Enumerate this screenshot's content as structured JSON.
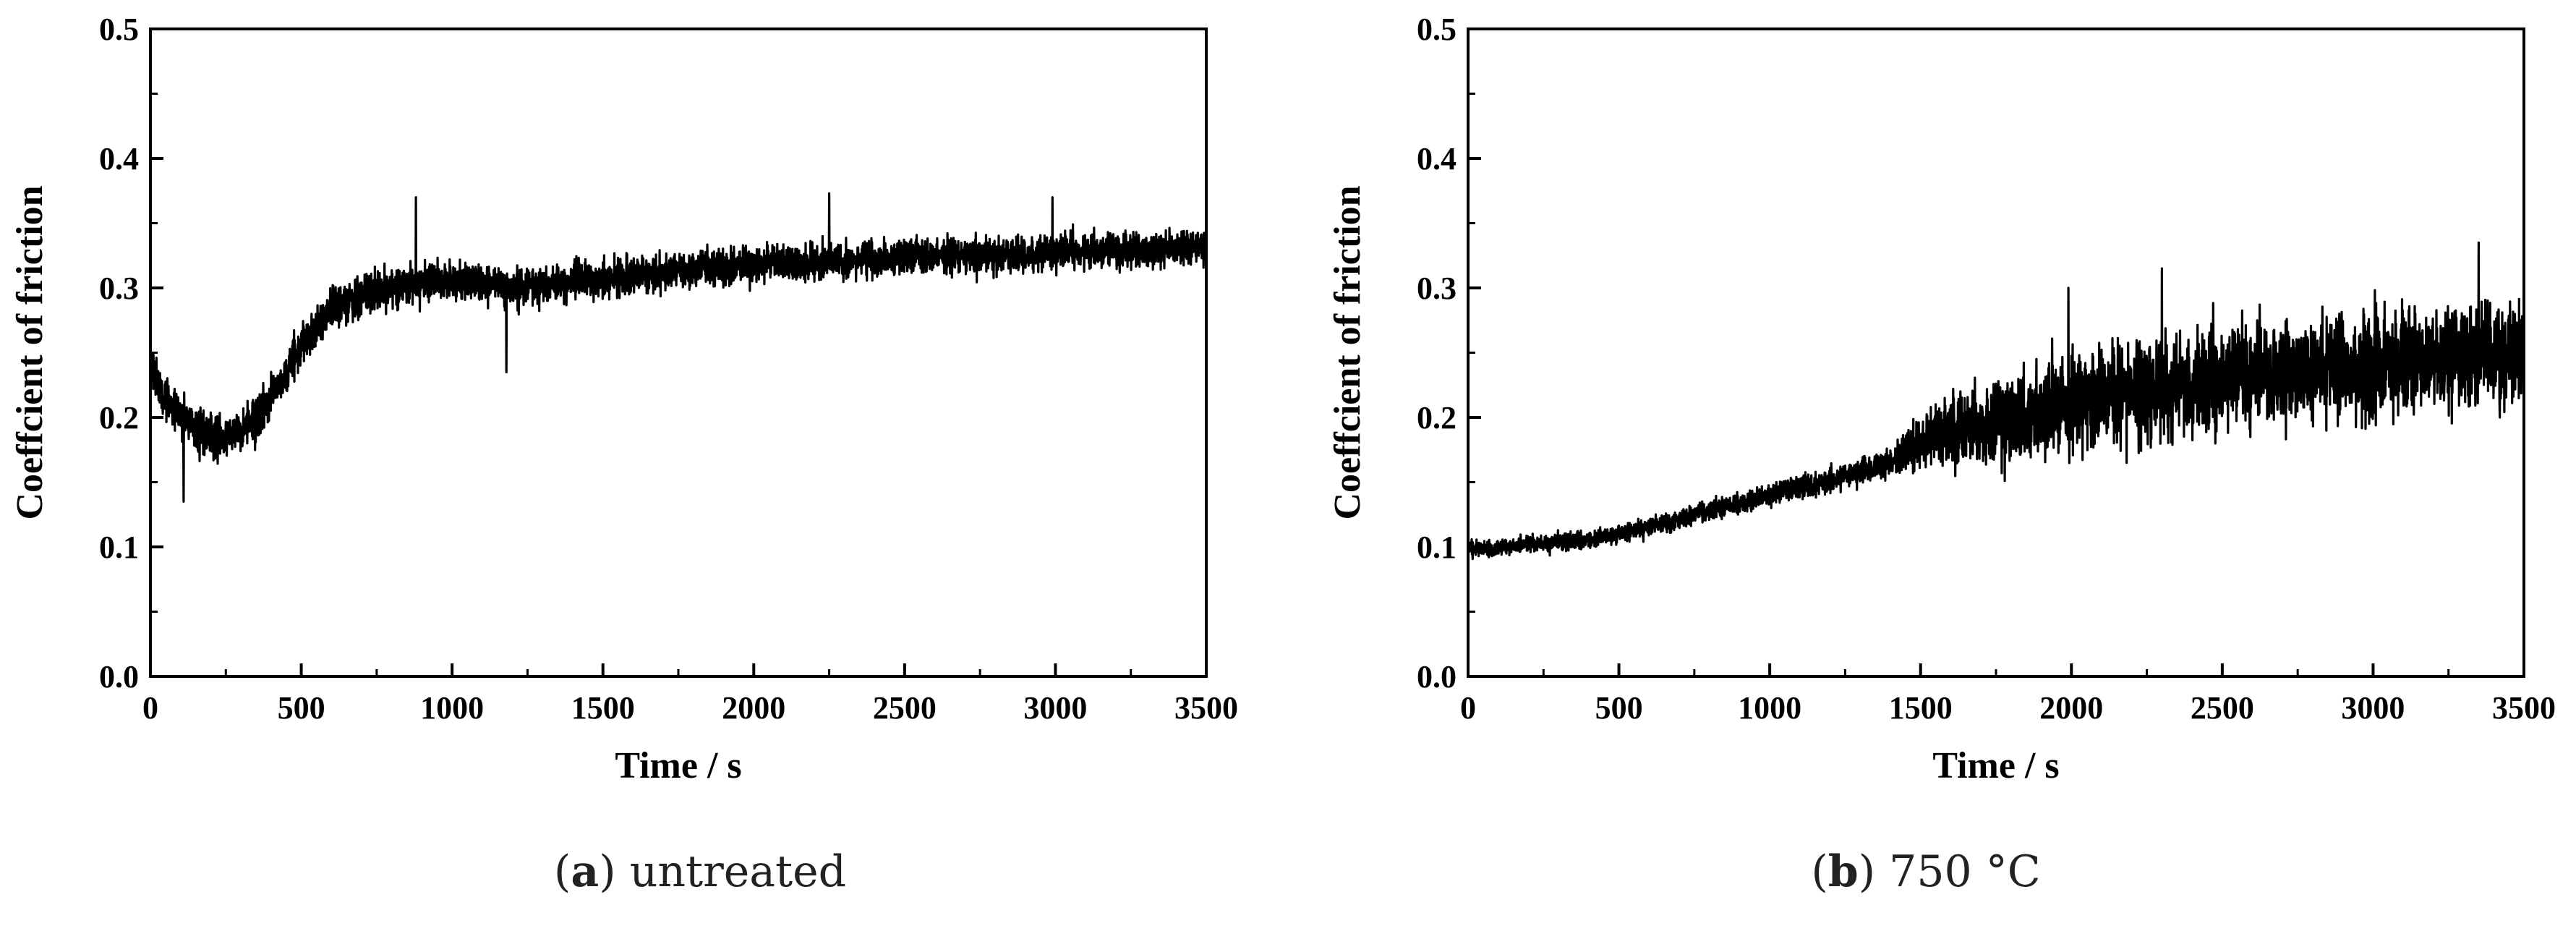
{
  "chart_data": [
    {
      "type": "line",
      "caption_letter": "a",
      "caption_text": "untreated",
      "xlabel": "Time / s",
      "ylabel": "Coeffcient of friction",
      "xlim": [
        0,
        3500
      ],
      "ylim": [
        0.0,
        0.5
      ],
      "xticks": [
        "0",
        "500",
        "1000",
        "1500",
        "2000",
        "2500",
        "3000",
        "3500"
      ],
      "yticks": [
        "0.0",
        "0.1",
        "0.2",
        "0.3",
        "0.4",
        "0.5"
      ],
      "grid": false,
      "legend": "none",
      "series_color": "#000000",
      "trend": {
        "x": [
          0,
          50,
          100,
          150,
          200,
          250,
          300,
          350,
          400,
          450,
          500,
          550,
          600,
          700,
          800,
          900,
          1000,
          1100,
          1200,
          1400,
          1600,
          1800,
          2000,
          2200,
          2400,
          2600,
          2800,
          3000,
          3200,
          3400,
          3500
        ],
        "y": [
          0.235,
          0.215,
          0.2,
          0.19,
          0.185,
          0.185,
          0.19,
          0.2,
          0.215,
          0.235,
          0.255,
          0.27,
          0.285,
          0.295,
          0.3,
          0.305,
          0.305,
          0.305,
          0.3,
          0.305,
          0.31,
          0.315,
          0.318,
          0.32,
          0.322,
          0.325,
          0.325,
          0.328,
          0.33,
          0.33,
          0.33
        ]
      },
      "noise_amplitude": {
        "x": [
          0,
          500,
          1000,
          2000,
          3500
        ],
        "y": [
          0.025,
          0.02,
          0.02,
          0.018,
          0.018
        ]
      },
      "spikes": [
        {
          "x": 110,
          "y": 0.135
        },
        {
          "x": 880,
          "y": 0.37
        },
        {
          "x": 1180,
          "y": 0.235
        },
        {
          "x": 2250,
          "y": 0.373
        },
        {
          "x": 2990,
          "y": 0.37
        }
      ]
    },
    {
      "type": "line",
      "caption_letter": "b",
      "caption_text": "750 °C",
      "xlabel": "Time / s",
      "ylabel": "Coeffcient of friction",
      "xlim": [
        0,
        3500
      ],
      "ylim": [
        0.0,
        0.5
      ],
      "xticks": [
        "0",
        "500",
        "1000",
        "1500",
        "2000",
        "2500",
        "3000",
        "3500"
      ],
      "yticks": [
        "0.0",
        "0.1",
        "0.2",
        "0.3",
        "0.4",
        "0.5"
      ],
      "grid": false,
      "legend": "none",
      "series_color": "#000000",
      "trend": {
        "x": [
          0,
          200,
          400,
          600,
          800,
          1000,
          1200,
          1400,
          1500,
          1600,
          1800,
          2000,
          2200,
          2400,
          2600,
          2800,
          3000,
          3200,
          3400,
          3500
        ],
        "y": [
          0.098,
          0.102,
          0.105,
          0.115,
          0.128,
          0.14,
          0.152,
          0.165,
          0.18,
          0.19,
          0.2,
          0.21,
          0.218,
          0.225,
          0.232,
          0.238,
          0.242,
          0.245,
          0.25,
          0.25
        ]
      },
      "noise_amplitude": {
        "x": [
          0,
          1000,
          1400,
          1600,
          2000,
          2500,
          3500
        ],
        "y": [
          0.008,
          0.01,
          0.015,
          0.035,
          0.05,
          0.05,
          0.05
        ]
      },
      "spikes": [
        {
          "x": 1990,
          "y": 0.3
        },
        {
          "x": 2300,
          "y": 0.315
        },
        {
          "x": 3350,
          "y": 0.335
        },
        {
          "x": 3420,
          "y": 0.2
        }
      ]
    }
  ]
}
